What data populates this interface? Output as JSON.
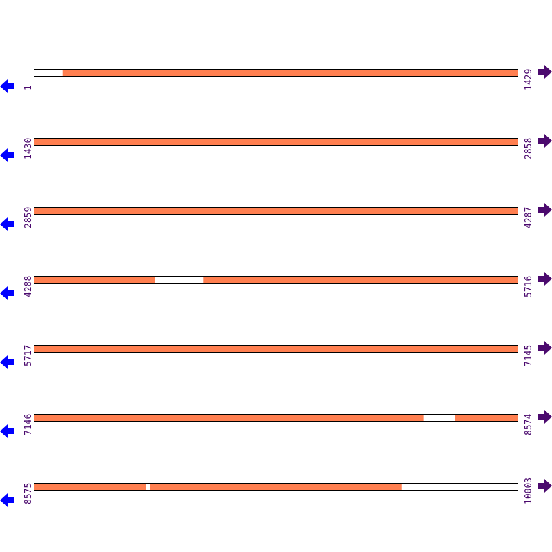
{
  "colors": {
    "coverage": "#ff7f50",
    "left_arrow": "#0000ff",
    "right_arrow": "#4b0a6e",
    "label": "#4b0a6e",
    "line": "#000000"
  },
  "icons": {
    "left": "arrow-left-icon",
    "right": "arrow-right-icon"
  },
  "rows": [
    {
      "start": "1",
      "end": "1429",
      "s": 1,
      "e": 1429,
      "coverage": [
        [
          84,
          1429
        ]
      ]
    },
    {
      "start": "1430",
      "end": "2858",
      "s": 1430,
      "e": 2858,
      "coverage": [
        [
          1430,
          2858
        ]
      ]
    },
    {
      "start": "2859",
      "end": "4287",
      "s": 2859,
      "e": 4287,
      "coverage": [
        [
          2859,
          4287
        ]
      ]
    },
    {
      "start": "4288",
      "end": "5716",
      "s": 4288,
      "e": 5716,
      "coverage": [
        [
          4288,
          4643
        ],
        [
          4786,
          5716
        ]
      ]
    },
    {
      "start": "5717",
      "end": "7145",
      "s": 5717,
      "e": 7145,
      "coverage": [
        [
          5717,
          7145
        ]
      ]
    },
    {
      "start": "7146",
      "end": "8574",
      "s": 7146,
      "e": 8574,
      "coverage": [
        [
          7146,
          8294
        ],
        [
          8388,
          8574
        ]
      ]
    },
    {
      "start": "8575",
      "end": "10003",
      "s": 8575,
      "e": 10003,
      "coverage": [
        [
          8575,
          8903
        ],
        [
          8916,
          9658
        ]
      ]
    }
  ]
}
